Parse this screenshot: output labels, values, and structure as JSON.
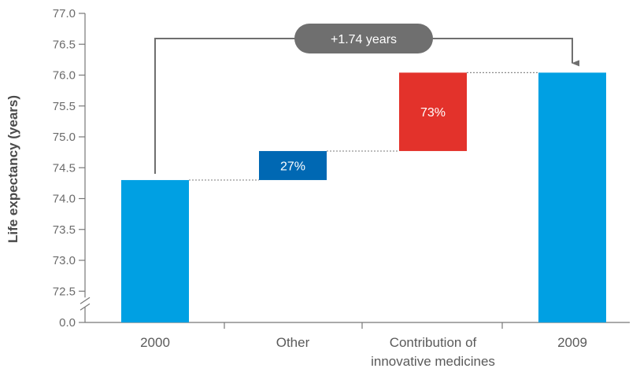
{
  "chart_data": {
    "type": "bar",
    "subtype": "waterfall",
    "ylabel": "Life expectancy (years)",
    "xlabel": "",
    "title": "",
    "ylim": [
      72.5,
      77.0
    ],
    "y_axis_break": true,
    "y_ticks": [
      "0.0",
      "72.5",
      "73.0",
      "73.5",
      "74.0",
      "74.5",
      "75.0",
      "75.5",
      "76.0",
      "76.5",
      "77.0"
    ],
    "categories": [
      "2000",
      "Other",
      "Contribution of\ninnovative medicines",
      "2009"
    ],
    "bars": [
      {
        "category": "2000",
        "kind": "total",
        "start": 0,
        "end": 74.3,
        "color": "#00a0e3",
        "label": ""
      },
      {
        "category": "Other",
        "kind": "delta",
        "start": 74.3,
        "end": 74.77,
        "color": "#0068b3",
        "label": "27%"
      },
      {
        "category": "Contribution of\ninnovative medicines",
        "kind": "delta",
        "start": 74.77,
        "end": 76.04,
        "color": "#e3322b",
        "label": "73%"
      },
      {
        "category": "2009",
        "kind": "total",
        "start": 0,
        "end": 76.04,
        "color": "#00a0e3",
        "label": ""
      }
    ],
    "annotation": {
      "text": "+1.74 years",
      "from": "2000",
      "to": "2009",
      "color": "#6f6f6f"
    },
    "connector_lines": true,
    "grid": false,
    "legend": "none"
  }
}
